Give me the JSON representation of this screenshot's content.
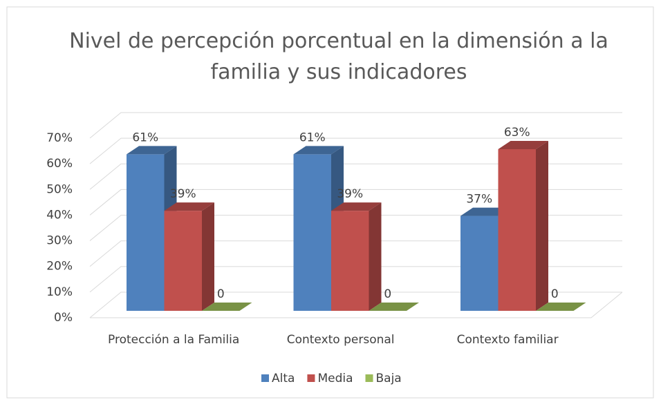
{
  "chart_data": {
    "type": "bar3d",
    "title": "Nivel de percepción porcentual en la dimensión a la familia y sus indicadores",
    "categories": [
      "Protección a la Familia",
      "Contexto personal",
      "Contexto familiar"
    ],
    "series": [
      {
        "name": "Alta",
        "color": "#4f81bd",
        "values": [
          61,
          61,
          37
        ],
        "value_labels": [
          "61%",
          "61%",
          "37%"
        ]
      },
      {
        "name": "Media",
        "color": "#c0504d",
        "values": [
          39,
          39,
          63
        ],
        "value_labels": [
          "39%",
          "39%",
          "63%"
        ]
      },
      {
        "name": "Baja",
        "color": "#9bbb59",
        "values": [
          0,
          0,
          0
        ]
      }
    ],
    "ylim": [
      0,
      70
    ],
    "yticks": [
      {
        "value": 0,
        "label": "0%"
      },
      {
        "value": 10,
        "label": "10%"
      },
      {
        "value": 20,
        "label": "20%"
      },
      {
        "value": 30,
        "label": "30%"
      },
      {
        "value": 40,
        "label": "40%"
      },
      {
        "value": 50,
        "label": "50%"
      },
      {
        "value": 60,
        "label": "60%"
      },
      {
        "value": 70,
        "label": "70%"
      }
    ],
    "grid": true,
    "legend": "bottom"
  }
}
